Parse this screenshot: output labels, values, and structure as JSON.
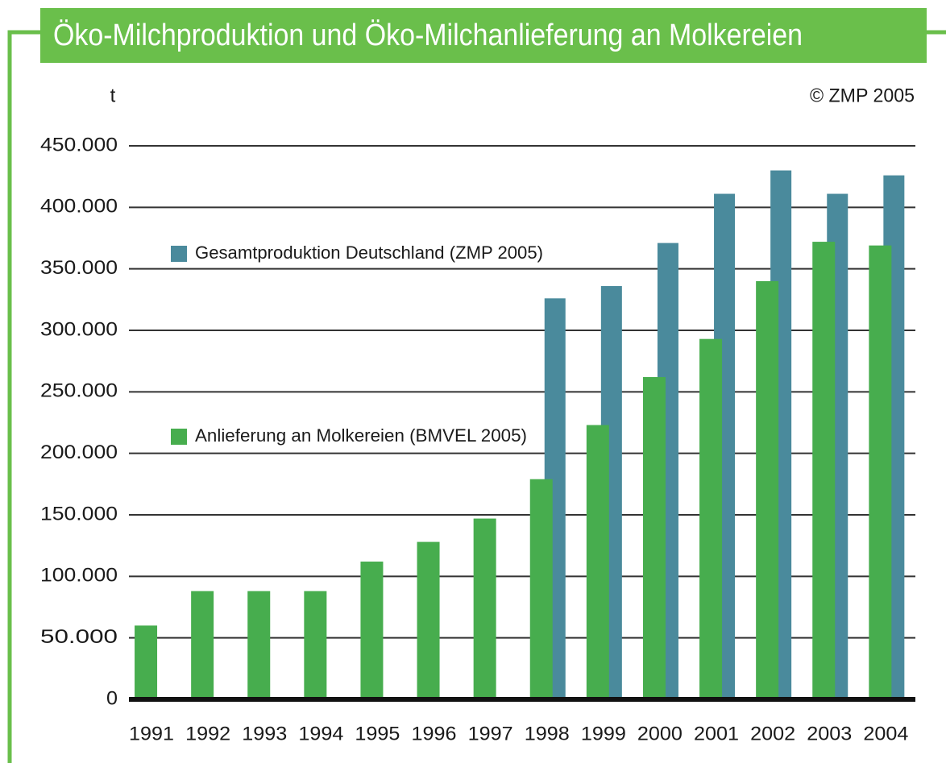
{
  "chart_data": {
    "type": "bar",
    "title": "Öko-Milchproduktion und Öko-Milchanlieferung an Molkereien",
    "y_label": "t",
    "source": "© ZMP 2005",
    "categories": [
      "1991",
      "1992",
      "1993",
      "1994",
      "1995",
      "1996",
      "1997",
      "1998",
      "1999",
      "2000",
      "2001",
      "2002",
      "2003",
      "2004"
    ],
    "series": [
      {
        "name": "Gesamtproduktion Deutschland (ZMP 2005)",
        "color": "#4a8a9c",
        "values": [
          null,
          null,
          null,
          null,
          null,
          null,
          null,
          326000,
          336000,
          371000,
          411000,
          430000,
          411000,
          426000
        ]
      },
      {
        "name": "Anlieferung an Molkereien (BMVEL 2005)",
        "color": "#47ad4e",
        "values": [
          60000,
          88000,
          88000,
          88000,
          112000,
          128000,
          147000,
          179000,
          223000,
          262000,
          293000,
          340000,
          372000,
          369000
        ]
      }
    ],
    "ylim": [
      0,
      450000
    ],
    "yticks": [
      0,
      {
        "value": 50000,
        "label": "50.000"
      },
      {
        "value": 100000,
        "label": "100.000"
      },
      {
        "value": 150000,
        "label": "150.000"
      },
      {
        "value": 200000,
        "label": "200.000"
      },
      {
        "value": 250000,
        "label": "250.000"
      },
      {
        "value": 300000,
        "label": "300.000"
      },
      {
        "value": 350000,
        "label": "350.000"
      },
      {
        "value": 400000,
        "label": "400.000"
      },
      {
        "value": 450000,
        "label": "450.000"
      }
    ],
    "grid": true
  }
}
